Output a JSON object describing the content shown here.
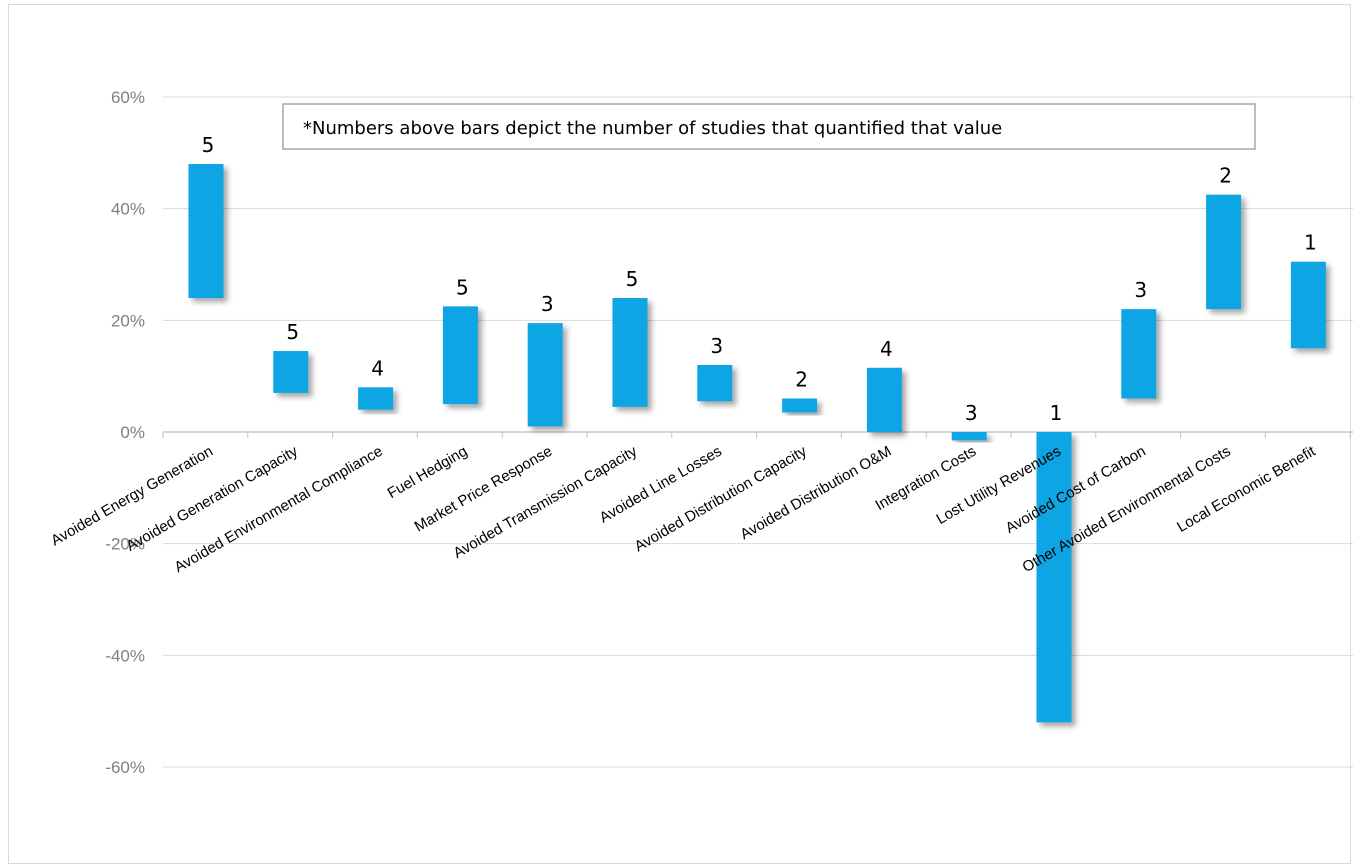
{
  "chart_data": {
    "type": "bar",
    "subtype": "floating-range",
    "title": "",
    "xlabel": "",
    "ylabel": "",
    "ylim": [
      -0.6,
      0.6
    ],
    "yticks": [
      0.6,
      0.4,
      0.2,
      0,
      -0.2,
      -0.4,
      -0.6
    ],
    "ytick_labels": [
      "60%",
      "40%",
      "20%",
      "0%",
      "-20%",
      "-40%",
      "-60%"
    ],
    "grid": true,
    "legend": "none",
    "bar_color": "#0ea5e4",
    "annotation": "*Numbers above bars depict the number of studies that quantified that value",
    "categories": [
      "Avoided Energy Generation",
      "Avoided Generation Capacity",
      "Avoided Environmental Compliance",
      "Fuel Hedging",
      "Market Price Response",
      "Avoided Transmission Capacity",
      "Avoided Line Losses",
      "Avoided Distribution Capacity",
      "Avoided Distribution O&M",
      "Integration Costs",
      "Lost Utility Revenues",
      "Avoided Cost of Carbon",
      "Other Avoided Environmental Costs",
      "Local Economic Benefit"
    ],
    "low": [
      0.24,
      0.07,
      0.04,
      0.05,
      0.01,
      0.045,
      0.055,
      0.035,
      0.0,
      -0.015,
      -0.52,
      0.06,
      0.22,
      0.15
    ],
    "high": [
      0.48,
      0.145,
      0.08,
      0.225,
      0.195,
      0.24,
      0.12,
      0.06,
      0.115,
      0.0,
      0.0,
      0.22,
      0.425,
      0.305
    ],
    "data_labels": [
      "5",
      "5",
      "4",
      "5",
      "3",
      "5",
      "3",
      "2",
      "4",
      "3",
      "1",
      "3",
      "2",
      "1"
    ]
  }
}
